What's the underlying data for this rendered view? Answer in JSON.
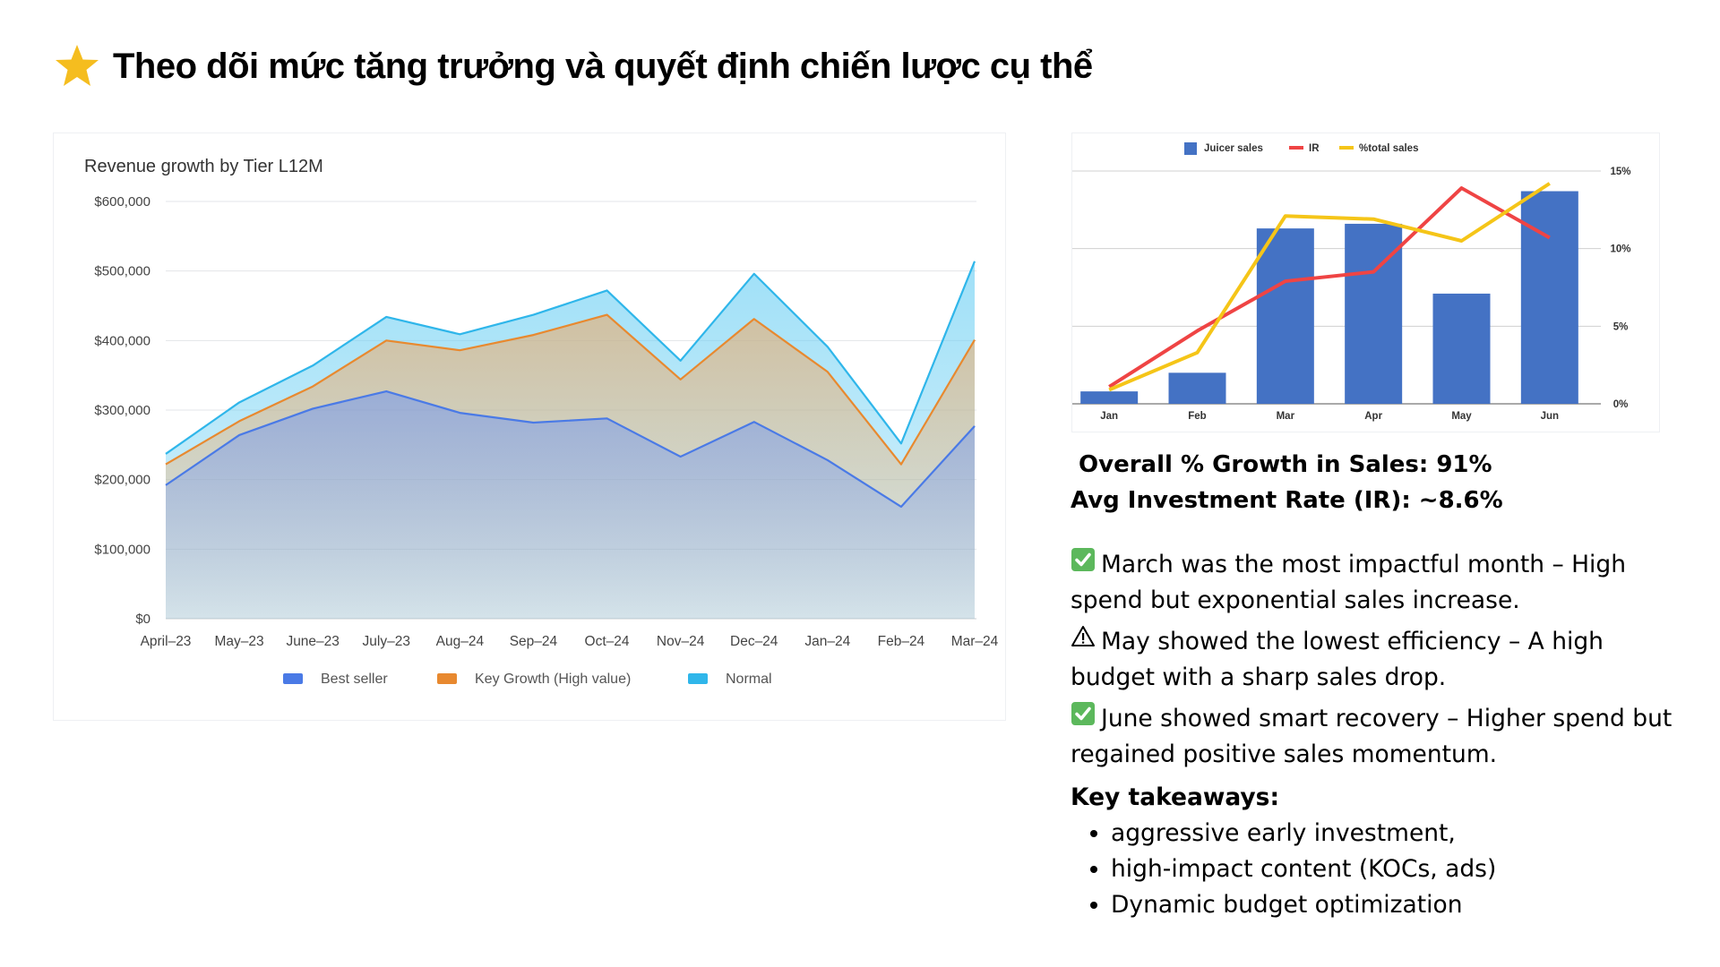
{
  "header": {
    "title": "Theo dõi mức tăng trưởng và quyết định chiến lược cụ thể"
  },
  "colors": {
    "best_seller": "#4a7ae6",
    "key_growth": "#e8892f",
    "normal": "#2fb6ea",
    "juicer_bar": "#4472c4",
    "ir_line": "#ef4444",
    "pct_line": "#f5c518"
  },
  "chart_data": [
    {
      "type": "area",
      "title": "Revenue growth by Tier L12M",
      "categories": [
        "April–23",
        "May–23",
        "June–23",
        "July–23",
        "Aug–24",
        "Sep–24",
        "Oct–24",
        "Nov–24",
        "Dec–24",
        "Jan–24",
        "Feb–24",
        "Mar–24"
      ],
      "ylim": [
        0,
        600000
      ],
      "yticks": [
        "$0",
        "$100,000",
        "$200,000",
        "$300,000",
        "$400,000",
        "$500,000",
        "$600,000"
      ],
      "grid": true,
      "legend_position": "bottom",
      "series": [
        {
          "name": "Best seller",
          "values": [
            192000,
            264000,
            302000,
            327000,
            296000,
            282000,
            288000,
            233000,
            283000,
            228000,
            161000,
            277000
          ]
        },
        {
          "name": "Key Growth (High value)",
          "values": [
            222000,
            284000,
            334000,
            400000,
            386000,
            408000,
            437000,
            344000,
            431000,
            355000,
            222000,
            401000
          ]
        },
        {
          "name": "Normal",
          "values": [
            237000,
            311000,
            364000,
            434000,
            409000,
            437000,
            472000,
            371000,
            496000,
            391000,
            252000,
            514000
          ]
        }
      ]
    },
    {
      "type": "bar",
      "categories": [
        "Jan",
        "Feb",
        "Mar",
        "Apr",
        "May",
        "Jun"
      ],
      "y2ticks": [
        "0%",
        "5%",
        "10%",
        "15%"
      ],
      "y2lim": [
        0,
        15
      ],
      "legend_position": "top",
      "series": [
        {
          "name": "Juicer sales",
          "type": "bar",
          "values": [
            0.8,
            2.0,
            11.3,
            11.6,
            7.1,
            13.7
          ]
        },
        {
          "name": "IR",
          "type": "line",
          "values": [
            1.1,
            4.7,
            7.9,
            8.5,
            13.9,
            10.7
          ]
        },
        {
          "name": "%total sales",
          "type": "line",
          "values": [
            0.9,
            3.3,
            12.1,
            11.9,
            10.5,
            14.2
          ]
        }
      ]
    }
  ],
  "stats": {
    "growth": " Overall % Growth in Sales: 91%",
    "ir": "Avg Investment Rate (IR): ~8.6%"
  },
  "notes": [
    {
      "icon": "check-mark-icon",
      "text": "March was the most impactful month – High spend but exponential sales increase."
    },
    {
      "icon": "warning-icon",
      "text": "May showed the lowest efficiency – A high budget with a sharp sales drop."
    },
    {
      "icon": "check-mark-icon",
      "text": "June showed smart recovery – Higher spend but regained positive sales momentum."
    }
  ],
  "takeaways": {
    "heading": "Key takeaways:",
    "items": [
      "aggressive early investment,",
      "high-impact content (KOCs, ads)",
      "Dynamic budget optimization"
    ]
  }
}
